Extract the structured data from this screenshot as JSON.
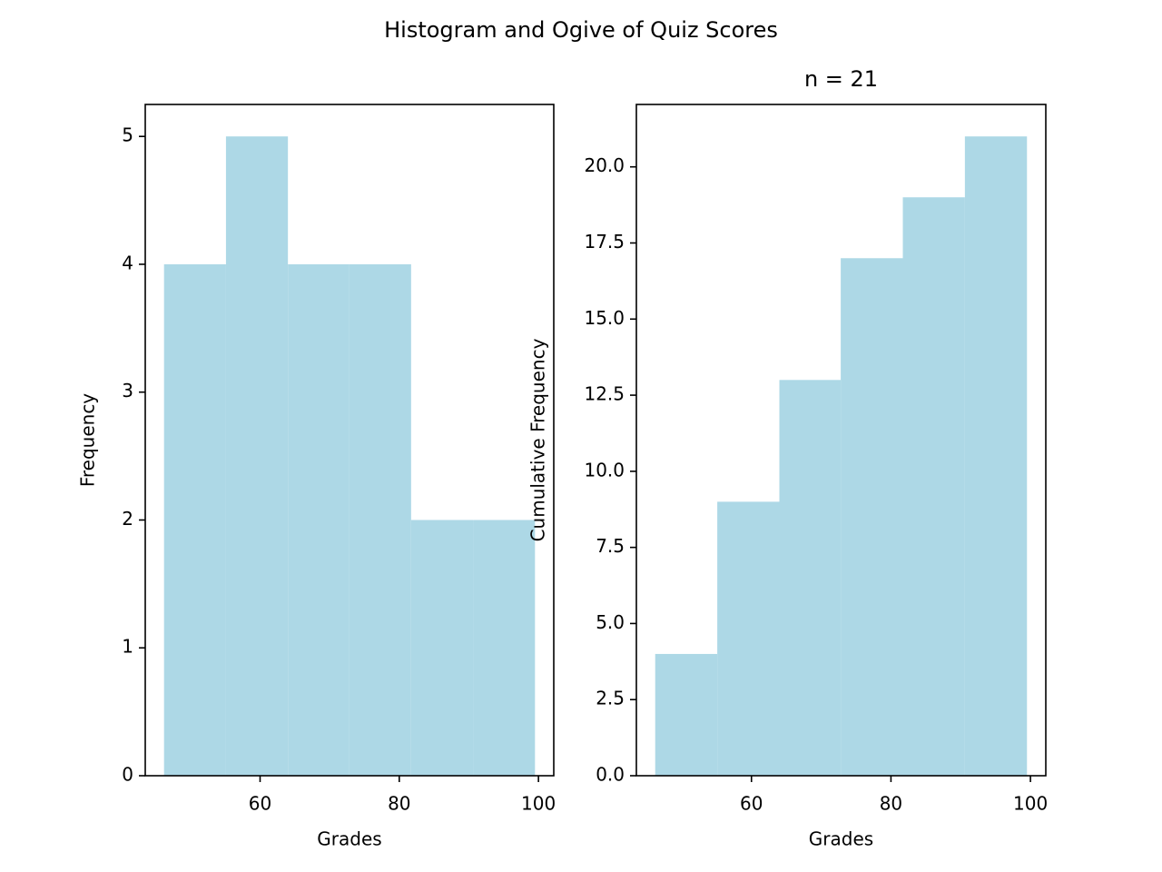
{
  "title": "Histogram and Ogive of Quiz Scores",
  "chart_data": [
    {
      "type": "histogram",
      "xlabel": "Grades",
      "ylabel": "Frequency",
      "color": "#add8e6",
      "bins": [
        46.2,
        55.1,
        64.0,
        72.8,
        81.7,
        90.6,
        99.5
      ],
      "values": [
        4,
        5,
        4,
        4,
        2,
        2
      ],
      "xlim": [
        43.5,
        102.2
      ],
      "xticks": [
        60,
        80,
        100
      ],
      "ylim": [
        0,
        5.25
      ],
      "yticks": [
        0,
        1,
        2,
        3,
        4,
        5
      ]
    },
    {
      "type": "histogram",
      "title": "n = 21",
      "xlabel": "Grades",
      "ylabel": "Cumulative Frequency",
      "color": "#add8e6",
      "bins": [
        46.2,
        55.1,
        64.0,
        72.8,
        81.7,
        90.6,
        99.5
      ],
      "values": [
        4,
        9,
        13,
        17,
        19,
        21
      ],
      "xlim": [
        43.5,
        102.2
      ],
      "xticks": [
        60,
        80,
        100
      ],
      "ylim": [
        0,
        22.05
      ],
      "yticks": [
        {
          "value": 0,
          "label": "0.0"
        },
        {
          "value": 2.5,
          "label": "2.5"
        },
        {
          "value": 5,
          "label": "5.0"
        },
        {
          "value": 7.5,
          "label": "7.5"
        },
        {
          "value": 10,
          "label": "10.0"
        },
        {
          "value": 12.5,
          "label": "12.5"
        },
        {
          "value": 15,
          "label": "15.0"
        },
        {
          "value": 17.5,
          "label": "17.5"
        },
        {
          "value": 20,
          "label": "20.0"
        }
      ]
    }
  ]
}
